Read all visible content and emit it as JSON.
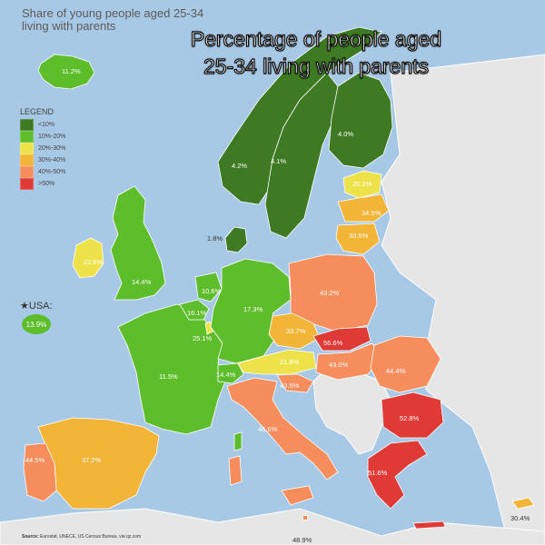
{
  "subtitle": [
    "Share of young people aged 25-34",
    "living with parents"
  ],
  "headline": [
    "Percentage of people aged",
    "25-34 living with parents"
  ],
  "legend": {
    "title": "LEGEND",
    "items": [
      {
        "label": "<10%",
        "color": "#3d7a23"
      },
      {
        "label": "10%-20%",
        "color": "#5dbd2a"
      },
      {
        "label": "20%-30%",
        "color": "#eee24a"
      },
      {
        "label": "30%-40%",
        "color": "#f2b537"
      },
      {
        "label": "40%-50%",
        "color": "#f58e5c"
      },
      {
        "label": ">50%",
        "color": "#e03a36"
      }
    ]
  },
  "usa": {
    "label": "USA:",
    "value": "13.9%",
    "color": "#5dbd2a",
    "icon": "star-icon"
  },
  "source": {
    "prefix": "Source:",
    "text": "Eurostat, UNECE, US Census Bureau, via qz.com"
  },
  "regions": [
    {
      "name": "iceland",
      "value": "11.2%",
      "color": "#5dbd2a"
    },
    {
      "name": "norway",
      "value": "4.2%",
      "color": "#3d7a23"
    },
    {
      "name": "sweden",
      "value": "4.1%",
      "color": "#3d7a23"
    },
    {
      "name": "finland",
      "value": "4.0%",
      "color": "#3d7a23"
    },
    {
      "name": "denmark",
      "value": "1.8%",
      "color": "#3d7a23"
    },
    {
      "name": "estonia",
      "value": "20.2%",
      "color": "#eee24a"
    },
    {
      "name": "latvia",
      "value": "34.5%",
      "color": "#f2b537"
    },
    {
      "name": "lithuania",
      "value": "33.5%",
      "color": "#f2b537"
    },
    {
      "name": "ireland",
      "value": "22.6%",
      "color": "#eee24a"
    },
    {
      "name": "united-kingdom",
      "value": "14.4%",
      "color": "#5dbd2a"
    },
    {
      "name": "netherlands",
      "value": "10.6%",
      "color": "#5dbd2a"
    },
    {
      "name": "belgium",
      "value": "16.1%",
      "color": "#5dbd2a"
    },
    {
      "name": "luxembourg",
      "value": "25.1%",
      "color": "#eee24a"
    },
    {
      "name": "germany",
      "value": "17.3%",
      "color": "#5dbd2a"
    },
    {
      "name": "poland",
      "value": "43.2%",
      "color": "#f58e5c"
    },
    {
      "name": "czechia",
      "value": "33.7%",
      "color": "#f2b537"
    },
    {
      "name": "slovakia",
      "value": "56.6%",
      "color": "#e03a36"
    },
    {
      "name": "austria",
      "value": "21.8%",
      "color": "#eee24a"
    },
    {
      "name": "hungary",
      "value": "43.0%",
      "color": "#f58e5c"
    },
    {
      "name": "slovenia",
      "value": "43.5%",
      "color": "#f58e5c"
    },
    {
      "name": "switzerland",
      "value": "14.4%",
      "color": "#5dbd2a"
    },
    {
      "name": "france",
      "value": "11.5%",
      "color": "#5dbd2a"
    },
    {
      "name": "romania",
      "value": "44.4%",
      "color": "#f58e5c"
    },
    {
      "name": "bulgaria",
      "value": "52.8%",
      "color": "#e03a36"
    },
    {
      "name": "italy",
      "value": "46.6%",
      "color": "#f58e5c"
    },
    {
      "name": "portugal",
      "value": "44.5%",
      "color": "#f58e5c"
    },
    {
      "name": "spain",
      "value": "37.2%",
      "color": "#f2b537"
    },
    {
      "name": "greece",
      "value": "51.6%",
      "color": "#e03a36"
    },
    {
      "name": "cyprus",
      "value": "30.4%",
      "color": "#f2b537"
    },
    {
      "name": "malta",
      "value": "48.9%",
      "color": "#f58e5c"
    }
  ]
}
